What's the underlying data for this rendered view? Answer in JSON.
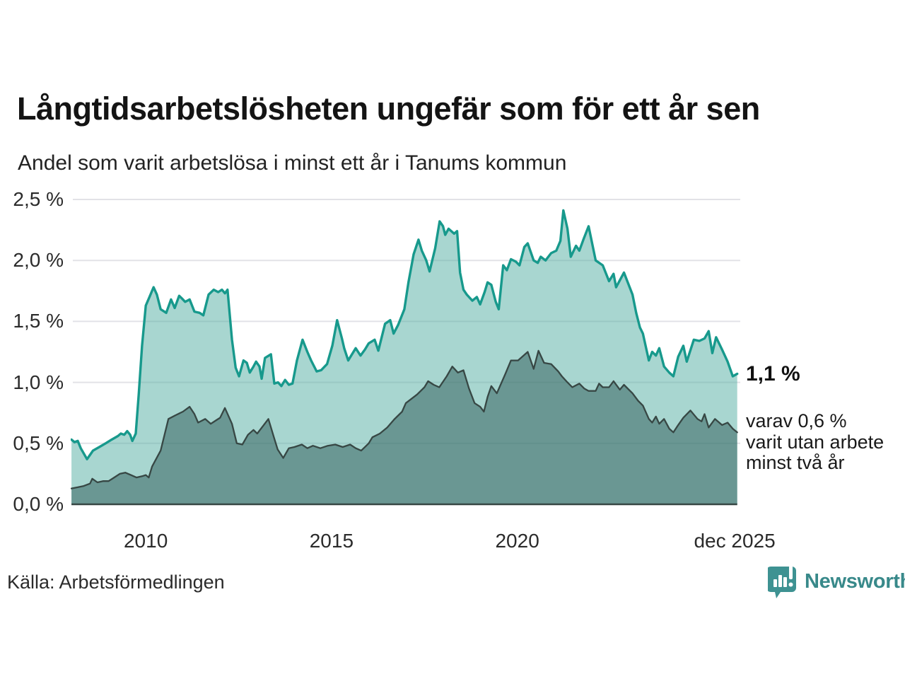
{
  "header": {
    "title": "Långtidsarbetslösheten ungefär som för ett år sen",
    "subtitle": "Andel som varit arbetslösa i minst ett år i Tanums kommun"
  },
  "chart_data": {
    "type": "area",
    "unit": "%",
    "title": "Långtidsarbetslösheten ungefär som för ett år sen",
    "subtitle": "Andel som varit arbetslösa i minst ett år i Tanums kommun",
    "grid": true,
    "legend_position": "none",
    "colors": {
      "line_1yr": "#17998c",
      "fill_1yr": "rgba(81,173,161,0.5)",
      "line_2yr": "#374744",
      "fill_2yr": "rgba(54,100,96,0.55)",
      "gridline": "#e2e2e7",
      "axis_line": "#364744"
    },
    "y_axis": {
      "range": [
        0,
        2.5
      ],
      "ticks": [
        {
          "v": 0.0,
          "label": "0,0 %"
        },
        {
          "v": 0.5,
          "label": "0,5 %"
        },
        {
          "v": 1.0,
          "label": "1,0 %"
        },
        {
          "v": 1.5,
          "label": "1,5 %"
        },
        {
          "v": 2.0,
          "label": "2,0 %"
        },
        {
          "v": 2.5,
          "label": "2,5 %"
        }
      ]
    },
    "x_axis": {
      "range": [
        2007.98,
        2025.95
      ],
      "ticks": [
        {
          "x": 2010,
          "label": "2010"
        },
        {
          "x": 2015,
          "label": "2015"
        },
        {
          "x": 2020,
          "label": "2020"
        },
        {
          "x": 2025.85,
          "label": "dec 2025"
        }
      ]
    },
    "series": [
      {
        "name": "Andel arbetslösa minst ett år",
        "role": "1yr",
        "points": [
          [
            2008.0,
            0.53
          ],
          [
            2008.08,
            0.51
          ],
          [
            2008.17,
            0.52
          ],
          [
            2008.25,
            0.46
          ],
          [
            2008.42,
            0.37
          ],
          [
            2008.58,
            0.44
          ],
          [
            2008.75,
            0.47
          ],
          [
            2008.92,
            0.5
          ],
          [
            2009.08,
            0.53
          ],
          [
            2009.25,
            0.56
          ],
          [
            2009.33,
            0.58
          ],
          [
            2009.42,
            0.57
          ],
          [
            2009.5,
            0.6
          ],
          [
            2009.58,
            0.57
          ],
          [
            2009.64,
            0.52
          ],
          [
            2009.73,
            0.58
          ],
          [
            2009.81,
            0.9
          ],
          [
            2009.9,
            1.3
          ],
          [
            2010.0,
            1.63
          ],
          [
            2010.1,
            1.7
          ],
          [
            2010.21,
            1.78
          ],
          [
            2010.3,
            1.72
          ],
          [
            2010.4,
            1.6
          ],
          [
            2010.55,
            1.57
          ],
          [
            2010.68,
            1.68
          ],
          [
            2010.78,
            1.61
          ],
          [
            2010.9,
            1.71
          ],
          [
            2011.0,
            1.68
          ],
          [
            2011.06,
            1.66
          ],
          [
            2011.18,
            1.68
          ],
          [
            2011.31,
            1.58
          ],
          [
            2011.45,
            1.57
          ],
          [
            2011.55,
            1.55
          ],
          [
            2011.69,
            1.72
          ],
          [
            2011.83,
            1.76
          ],
          [
            2011.95,
            1.74
          ],
          [
            2012.05,
            1.76
          ],
          [
            2012.13,
            1.73
          ],
          [
            2012.2,
            1.76
          ],
          [
            2012.32,
            1.35
          ],
          [
            2012.42,
            1.12
          ],
          [
            2012.51,
            1.05
          ],
          [
            2012.63,
            1.18
          ],
          [
            2012.72,
            1.16
          ],
          [
            2012.8,
            1.08
          ],
          [
            2012.9,
            1.13
          ],
          [
            2012.97,
            1.17
          ],
          [
            2013.06,
            1.13
          ],
          [
            2013.12,
            1.03
          ],
          [
            2013.21,
            1.2
          ],
          [
            2013.37,
            1.23
          ],
          [
            2013.46,
            0.99
          ],
          [
            2013.56,
            1.0
          ],
          [
            2013.65,
            0.97
          ],
          [
            2013.75,
            1.02
          ],
          [
            2013.85,
            0.98
          ],
          [
            2013.95,
            0.99
          ],
          [
            2014.07,
            1.18
          ],
          [
            2014.22,
            1.35
          ],
          [
            2014.35,
            1.25
          ],
          [
            2014.45,
            1.18
          ],
          [
            2014.6,
            1.09
          ],
          [
            2014.72,
            1.1
          ],
          [
            2014.88,
            1.15
          ],
          [
            2015.02,
            1.3
          ],
          [
            2015.15,
            1.51
          ],
          [
            2015.28,
            1.36
          ],
          [
            2015.34,
            1.28
          ],
          [
            2015.45,
            1.18
          ],
          [
            2015.65,
            1.28
          ],
          [
            2015.78,
            1.22
          ],
          [
            2015.9,
            1.27
          ],
          [
            2016.0,
            1.32
          ],
          [
            2016.16,
            1.35
          ],
          [
            2016.26,
            1.26
          ],
          [
            2016.44,
            1.48
          ],
          [
            2016.58,
            1.51
          ],
          [
            2016.67,
            1.4
          ],
          [
            2016.79,
            1.47
          ],
          [
            2016.96,
            1.6
          ],
          [
            2017.07,
            1.82
          ],
          [
            2017.21,
            2.05
          ],
          [
            2017.34,
            2.17
          ],
          [
            2017.43,
            2.08
          ],
          [
            2017.55,
            2.0
          ],
          [
            2017.64,
            1.91
          ],
          [
            2017.79,
            2.1
          ],
          [
            2017.91,
            2.32
          ],
          [
            2018.0,
            2.28
          ],
          [
            2018.06,
            2.21
          ],
          [
            2018.15,
            2.26
          ],
          [
            2018.3,
            2.22
          ],
          [
            2018.38,
            2.24
          ],
          [
            2018.46,
            1.9
          ],
          [
            2018.55,
            1.76
          ],
          [
            2018.64,
            1.72
          ],
          [
            2018.79,
            1.67
          ],
          [
            2018.91,
            1.7
          ],
          [
            2019.0,
            1.64
          ],
          [
            2019.12,
            1.74
          ],
          [
            2019.2,
            1.82
          ],
          [
            2019.3,
            1.8
          ],
          [
            2019.42,
            1.66
          ],
          [
            2019.5,
            1.6
          ],
          [
            2019.62,
            1.96
          ],
          [
            2019.72,
            1.92
          ],
          [
            2019.83,
            2.01
          ],
          [
            2019.96,
            1.99
          ],
          [
            2020.06,
            1.96
          ],
          [
            2020.19,
            2.11
          ],
          [
            2020.28,
            2.14
          ],
          [
            2020.44,
            2.0
          ],
          [
            2020.55,
            1.98
          ],
          [
            2020.63,
            2.03
          ],
          [
            2020.76,
            2.0
          ],
          [
            2020.91,
            2.06
          ],
          [
            2021.05,
            2.08
          ],
          [
            2021.16,
            2.16
          ],
          [
            2021.24,
            2.41
          ],
          [
            2021.35,
            2.26
          ],
          [
            2021.44,
            2.03
          ],
          [
            2021.58,
            2.12
          ],
          [
            2021.67,
            2.08
          ],
          [
            2021.79,
            2.18
          ],
          [
            2021.92,
            2.28
          ],
          [
            2022.11,
            2.0
          ],
          [
            2022.3,
            1.96
          ],
          [
            2022.47,
            1.83
          ],
          [
            2022.59,
            1.89
          ],
          [
            2022.66,
            1.78
          ],
          [
            2022.87,
            1.9
          ],
          [
            2023.1,
            1.72
          ],
          [
            2023.2,
            1.57
          ],
          [
            2023.3,
            1.45
          ],
          [
            2023.38,
            1.4
          ],
          [
            2023.54,
            1.18
          ],
          [
            2023.63,
            1.25
          ],
          [
            2023.73,
            1.22
          ],
          [
            2023.82,
            1.28
          ],
          [
            2023.95,
            1.13
          ],
          [
            2024.09,
            1.08
          ],
          [
            2024.2,
            1.05
          ],
          [
            2024.33,
            1.21
          ],
          [
            2024.47,
            1.3
          ],
          [
            2024.56,
            1.17
          ],
          [
            2024.75,
            1.35
          ],
          [
            2024.9,
            1.34
          ],
          [
            2025.04,
            1.36
          ],
          [
            2025.15,
            1.42
          ],
          [
            2025.25,
            1.24
          ],
          [
            2025.35,
            1.37
          ],
          [
            2025.51,
            1.27
          ],
          [
            2025.66,
            1.17
          ],
          [
            2025.8,
            1.05
          ],
          [
            2025.92,
            1.07
          ]
        ]
      },
      {
        "name": "Varav utan arbete minst två år",
        "role": "2yr",
        "points": [
          [
            2008.0,
            0.13
          ],
          [
            2008.17,
            0.14
          ],
          [
            2008.33,
            0.15
          ],
          [
            2008.5,
            0.17
          ],
          [
            2008.56,
            0.21
          ],
          [
            2008.7,
            0.18
          ],
          [
            2008.85,
            0.19
          ],
          [
            2009.0,
            0.19
          ],
          [
            2009.15,
            0.22
          ],
          [
            2009.3,
            0.25
          ],
          [
            2009.45,
            0.26
          ],
          [
            2009.6,
            0.24
          ],
          [
            2009.75,
            0.22
          ],
          [
            2009.9,
            0.23
          ],
          [
            2010.0,
            0.24
          ],
          [
            2010.08,
            0.22
          ],
          [
            2010.17,
            0.31
          ],
          [
            2010.4,
            0.44
          ],
          [
            2010.61,
            0.7
          ],
          [
            2010.8,
            0.73
          ],
          [
            2011.0,
            0.76
          ],
          [
            2011.18,
            0.8
          ],
          [
            2011.31,
            0.74
          ],
          [
            2011.41,
            0.67
          ],
          [
            2011.6,
            0.7
          ],
          [
            2011.75,
            0.66
          ],
          [
            2011.9,
            0.69
          ],
          [
            2012.0,
            0.71
          ],
          [
            2012.13,
            0.79
          ],
          [
            2012.32,
            0.66
          ],
          [
            2012.45,
            0.5
          ],
          [
            2012.6,
            0.49
          ],
          [
            2012.75,
            0.57
          ],
          [
            2012.9,
            0.61
          ],
          [
            2013.0,
            0.58
          ],
          [
            2013.1,
            0.62
          ],
          [
            2013.3,
            0.7
          ],
          [
            2013.45,
            0.55
          ],
          [
            2013.55,
            0.45
          ],
          [
            2013.7,
            0.38
          ],
          [
            2013.85,
            0.46
          ],
          [
            2014.0,
            0.47
          ],
          [
            2014.2,
            0.49
          ],
          [
            2014.35,
            0.46
          ],
          [
            2014.5,
            0.48
          ],
          [
            2014.7,
            0.46
          ],
          [
            2014.9,
            0.48
          ],
          [
            2015.1,
            0.49
          ],
          [
            2015.3,
            0.47
          ],
          [
            2015.5,
            0.49
          ],
          [
            2015.65,
            0.46
          ],
          [
            2015.8,
            0.44
          ],
          [
            2016.0,
            0.5
          ],
          [
            2016.1,
            0.55
          ],
          [
            2016.3,
            0.58
          ],
          [
            2016.5,
            0.63
          ],
          [
            2016.7,
            0.7
          ],
          [
            2016.9,
            0.76
          ],
          [
            2017.0,
            0.83
          ],
          [
            2017.3,
            0.9
          ],
          [
            2017.5,
            0.96
          ],
          [
            2017.6,
            1.01
          ],
          [
            2017.75,
            0.98
          ],
          [
            2017.9,
            0.96
          ],
          [
            2018.1,
            1.05
          ],
          [
            2018.25,
            1.13
          ],
          [
            2018.4,
            1.08
          ],
          [
            2018.55,
            1.1
          ],
          [
            2018.7,
            0.95
          ],
          [
            2018.85,
            0.83
          ],
          [
            2019.0,
            0.8
          ],
          [
            2019.1,
            0.76
          ],
          [
            2019.2,
            0.88
          ],
          [
            2019.3,
            0.97
          ],
          [
            2019.45,
            0.91
          ],
          [
            2019.68,
            1.07
          ],
          [
            2019.83,
            1.18
          ],
          [
            2020.02,
            1.18
          ],
          [
            2020.28,
            1.25
          ],
          [
            2020.44,
            1.11
          ],
          [
            2020.57,
            1.26
          ],
          [
            2020.72,
            1.16
          ],
          [
            2020.91,
            1.15
          ],
          [
            2021.1,
            1.09
          ],
          [
            2021.2,
            1.05
          ],
          [
            2021.35,
            1.0
          ],
          [
            2021.48,
            0.96
          ],
          [
            2021.67,
            0.99
          ],
          [
            2021.8,
            0.95
          ],
          [
            2021.92,
            0.93
          ],
          [
            2022.11,
            0.93
          ],
          [
            2022.2,
            0.99
          ],
          [
            2022.3,
            0.96
          ],
          [
            2022.47,
            0.96
          ],
          [
            2022.59,
            1.01
          ],
          [
            2022.76,
            0.94
          ],
          [
            2022.87,
            0.98
          ],
          [
            2023.1,
            0.91
          ],
          [
            2023.25,
            0.85
          ],
          [
            2023.38,
            0.81
          ],
          [
            2023.54,
            0.7
          ],
          [
            2023.63,
            0.67
          ],
          [
            2023.73,
            0.72
          ],
          [
            2023.82,
            0.66
          ],
          [
            2023.95,
            0.7
          ],
          [
            2024.09,
            0.62
          ],
          [
            2024.2,
            0.59
          ],
          [
            2024.33,
            0.65
          ],
          [
            2024.47,
            0.71
          ],
          [
            2024.66,
            0.77
          ],
          [
            2024.85,
            0.7
          ],
          [
            2024.96,
            0.68
          ],
          [
            2025.04,
            0.74
          ],
          [
            2025.15,
            0.63
          ],
          [
            2025.32,
            0.7
          ],
          [
            2025.51,
            0.65
          ],
          [
            2025.66,
            0.67
          ],
          [
            2025.8,
            0.62
          ],
          [
            2025.92,
            0.59
          ]
        ]
      }
    ],
    "annotations": {
      "value_label": "1,1 %",
      "note_lines": [
        "varav 0,6 %",
        "varit utan arbete",
        "minst två år"
      ]
    }
  },
  "footer": {
    "source": "Källa: Arbetsförmedlingen",
    "brand": "Newsworthy",
    "brand_color": "#38898a",
    "brand_icon": "newsworthy-pin-barchart-icon"
  }
}
